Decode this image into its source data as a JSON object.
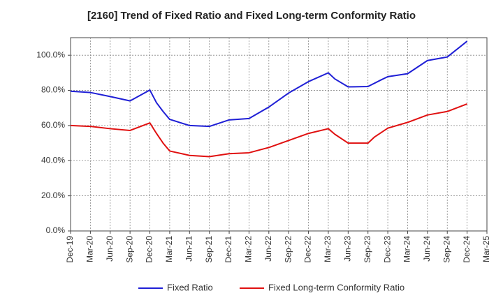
{
  "chart_data": {
    "type": "line",
    "title": "[2160]  Trend of Fixed Ratio and Fixed Long-term Conformity Ratio",
    "xlabel": "",
    "ylabel": "",
    "x_tick_labels": [
      "Dec-19",
      "Mar-20",
      "Jun-20",
      "Sep-20",
      "Dec-20",
      "Mar-21",
      "Jun-21",
      "Sep-21",
      "Dec-21",
      "Mar-22",
      "Jun-22",
      "Sep-22",
      "Dec-22",
      "Mar-23",
      "Jun-23",
      "Sep-23",
      "Dec-23",
      "Mar-24",
      "Jun-24",
      "Sep-24",
      "Dec-24",
      "Mar-25"
    ],
    "y_tick_labels": [
      "0.0%",
      "20.0%",
      "40.0%",
      "60.0%",
      "80.0%",
      "100.0%"
    ],
    "y_ticks": [
      0,
      20,
      40,
      60,
      80,
      100
    ],
    "ylim": [
      0,
      110
    ],
    "grid": true,
    "legend_position": "bottom",
    "series": [
      {
        "name": "Fixed Ratio",
        "color": "#1f1fd6",
        "values": [
          {
            "x": "Dec-19",
            "y": 79.5
          },
          {
            "x": "Mar-20",
            "y": 78.8
          },
          {
            "x": "Jun-20",
            "y": 76.5
          },
          {
            "x": "Sep-20",
            "y": 74.0
          },
          {
            "x": "Dec-20",
            "y": 80.2
          },
          {
            "x": "Jan-21",
            "y": 73.0
          },
          {
            "x": "Feb-21",
            "y": 68.0
          },
          {
            "x": "Mar-21",
            "y": 63.5
          },
          {
            "x": "Jun-21",
            "y": 60.0
          },
          {
            "x": "Sep-21",
            "y": 59.5
          },
          {
            "x": "Dec-21",
            "y": 63.2
          },
          {
            "x": "Mar-22",
            "y": 64.0
          },
          {
            "x": "Jun-22",
            "y": 70.5
          },
          {
            "x": "Sep-22",
            "y": 78.5
          },
          {
            "x": "Dec-22",
            "y": 85.0
          },
          {
            "x": "Mar-23",
            "y": 90.0
          },
          {
            "x": "Apr-23",
            "y": 86.5
          },
          {
            "x": "Jun-23",
            "y": 82.0
          },
          {
            "x": "Sep-23",
            "y": 82.2
          },
          {
            "x": "Nov-23",
            "y": 86.0
          },
          {
            "x": "Dec-23",
            "y": 87.8
          },
          {
            "x": "Mar-24",
            "y": 89.5
          },
          {
            "x": "Jun-24",
            "y": 97.0
          },
          {
            "x": "Sep-24",
            "y": 99.0
          },
          {
            "x": "Dec-24",
            "y": 108.0
          }
        ]
      },
      {
        "name": "Fixed Long-term Conformity Ratio",
        "color": "#e01010",
        "values": [
          {
            "x": "Dec-19",
            "y": 60.0
          },
          {
            "x": "Mar-20",
            "y": 59.5
          },
          {
            "x": "Jun-20",
            "y": 58.2
          },
          {
            "x": "Sep-20",
            "y": 57.2
          },
          {
            "x": "Dec-20",
            "y": 61.5
          },
          {
            "x": "Jan-21",
            "y": 55.5
          },
          {
            "x": "Feb-21",
            "y": 50.0
          },
          {
            "x": "Mar-21",
            "y": 45.5
          },
          {
            "x": "Jun-21",
            "y": 43.0
          },
          {
            "x": "Sep-21",
            "y": 42.3
          },
          {
            "x": "Dec-21",
            "y": 44.0
          },
          {
            "x": "Mar-22",
            "y": 44.5
          },
          {
            "x": "Jun-22",
            "y": 47.5
          },
          {
            "x": "Sep-22",
            "y": 51.5
          },
          {
            "x": "Dec-22",
            "y": 55.5
          },
          {
            "x": "Mar-23",
            "y": 58.2
          },
          {
            "x": "Apr-23",
            "y": 55.0
          },
          {
            "x": "Jun-23",
            "y": 50.0
          },
          {
            "x": "Sep-23",
            "y": 50.0
          },
          {
            "x": "Oct-23",
            "y": 53.5
          },
          {
            "x": "Dec-23",
            "y": 58.5
          },
          {
            "x": "Mar-24",
            "y": 61.8
          },
          {
            "x": "Jun-24",
            "y": 66.0
          },
          {
            "x": "Sep-24",
            "y": 68.0
          },
          {
            "x": "Dec-24",
            "y": 72.3
          }
        ]
      }
    ]
  }
}
